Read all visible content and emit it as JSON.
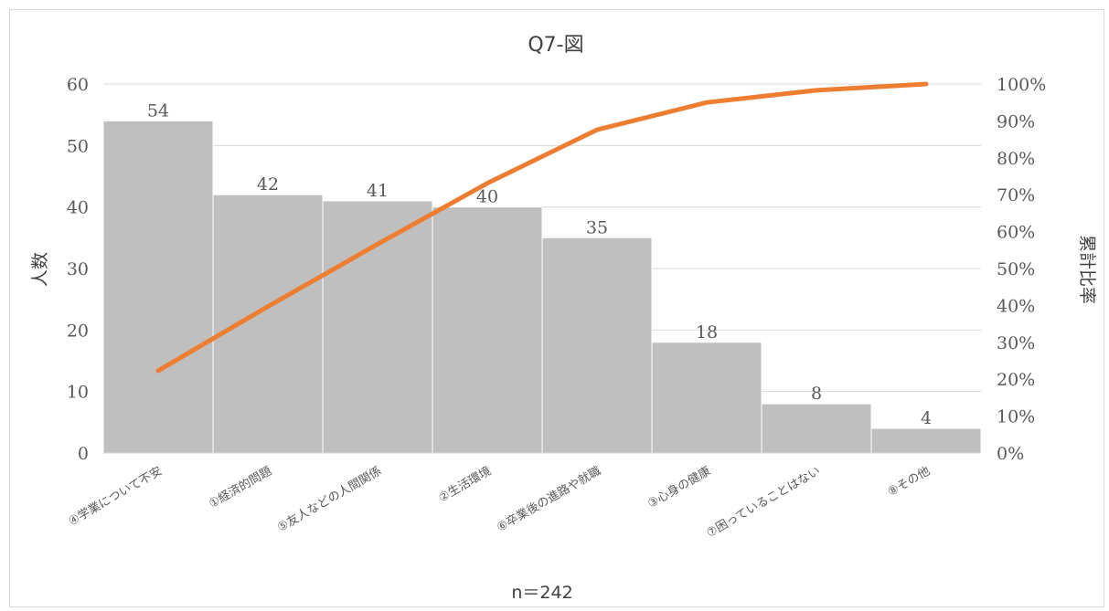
{
  "chart_data": {
    "type": "bar",
    "title": "Q7-図",
    "xlabel": "n＝242",
    "ylabel": "人数",
    "y2label": "累計比率",
    "categories": [
      "④学業について不安",
      "①経済的問題",
      "⑤友人などの人間関係",
      "②生活環境",
      "⑥卒業後の進路や就職",
      "③心身の健康",
      "⑦困っていることはない",
      "⑧その他"
    ],
    "values": [
      54,
      42,
      41,
      40,
      35,
      18,
      8,
      4
    ],
    "cumulative_percent": [
      22.3,
      39.7,
      56.6,
      73.1,
      87.6,
      95.0,
      98.3,
      100.0
    ],
    "ylim": [
      0,
      60
    ],
    "yticks": [
      "0",
      "10",
      "20",
      "30",
      "40",
      "50",
      "60"
    ],
    "y2lim": [
      0,
      100
    ],
    "y2ticks": [
      "0%",
      "10%",
      "20%",
      "30%",
      "40%",
      "50%",
      "60%",
      "70%",
      "80%",
      "90%",
      "100%"
    ],
    "grid": true,
    "colors": {
      "bar": "#bfbfbf",
      "line": "#ed7d31",
      "grid": "#d9d9d9",
      "text": "#595959"
    }
  }
}
